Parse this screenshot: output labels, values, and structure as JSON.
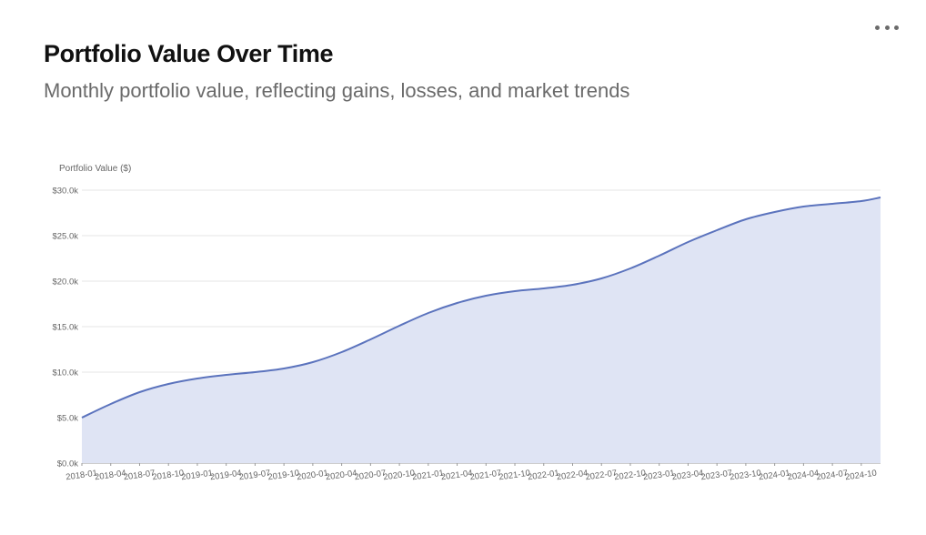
{
  "header": {
    "title": "Portfolio Value Over Time",
    "subtitle": "Monthly portfolio value, reflecting gains, losses, and market trends",
    "menu_icon": "more-horizontal-icon"
  },
  "colors": {
    "line": "#5b73bd",
    "area": "#dfe4f4",
    "grid": "#e6e6e6",
    "menu": "#6b6b6b"
  },
  "chart_data": {
    "type": "area",
    "title": "",
    "ylabel": "Portfolio Value ($)",
    "xlabel": "",
    "ylim": [
      0,
      30000
    ],
    "y_ticks": [
      0,
      5000,
      10000,
      15000,
      20000,
      25000,
      30000
    ],
    "y_tick_labels": [
      "$0.0k",
      "$5.0k",
      "$10.0k",
      "$15.0k",
      "$20.0k",
      "$25.0k",
      "$30.0k"
    ],
    "grid": true,
    "x_tick_labels": [
      "2018-01",
      "2018-04",
      "2018-07",
      "2018-10",
      "2019-01",
      "2019-04",
      "2019-07",
      "2019-10",
      "2020-01",
      "2020-04",
      "2020-07",
      "2020-10",
      "2021-01",
      "2021-04",
      "2021-07",
      "2021-10",
      "2022-01",
      "2022-04",
      "2022-07",
      "2022-10",
      "2023-01",
      "2023-04",
      "2023-07",
      "2023-10",
      "2024-01",
      "2024-04",
      "2024-07",
      "2024-10"
    ],
    "series": [
      {
        "x": [
          "2018-01",
          "2018-04",
          "2018-07",
          "2018-10",
          "2019-01",
          "2019-04",
          "2019-07",
          "2019-10",
          "2020-01",
          "2020-04",
          "2020-07",
          "2020-10",
          "2021-01",
          "2021-04",
          "2021-07",
          "2021-10",
          "2022-01",
          "2022-04",
          "2022-07",
          "2022-10",
          "2023-01",
          "2023-04",
          "2023-07",
          "2023-10",
          "2024-01",
          "2024-04",
          "2024-07",
          "2024-10",
          "2024-12"
        ],
        "values": [
          5000,
          6500,
          7800,
          8700,
          9300,
          9700,
          10000,
          10400,
          11100,
          12200,
          13600,
          15100,
          16500,
          17600,
          18400,
          18900,
          19200,
          19600,
          20300,
          21400,
          22800,
          24300,
          25600,
          26800,
          27600,
          28200,
          28500,
          28800,
          29200
        ]
      }
    ]
  }
}
